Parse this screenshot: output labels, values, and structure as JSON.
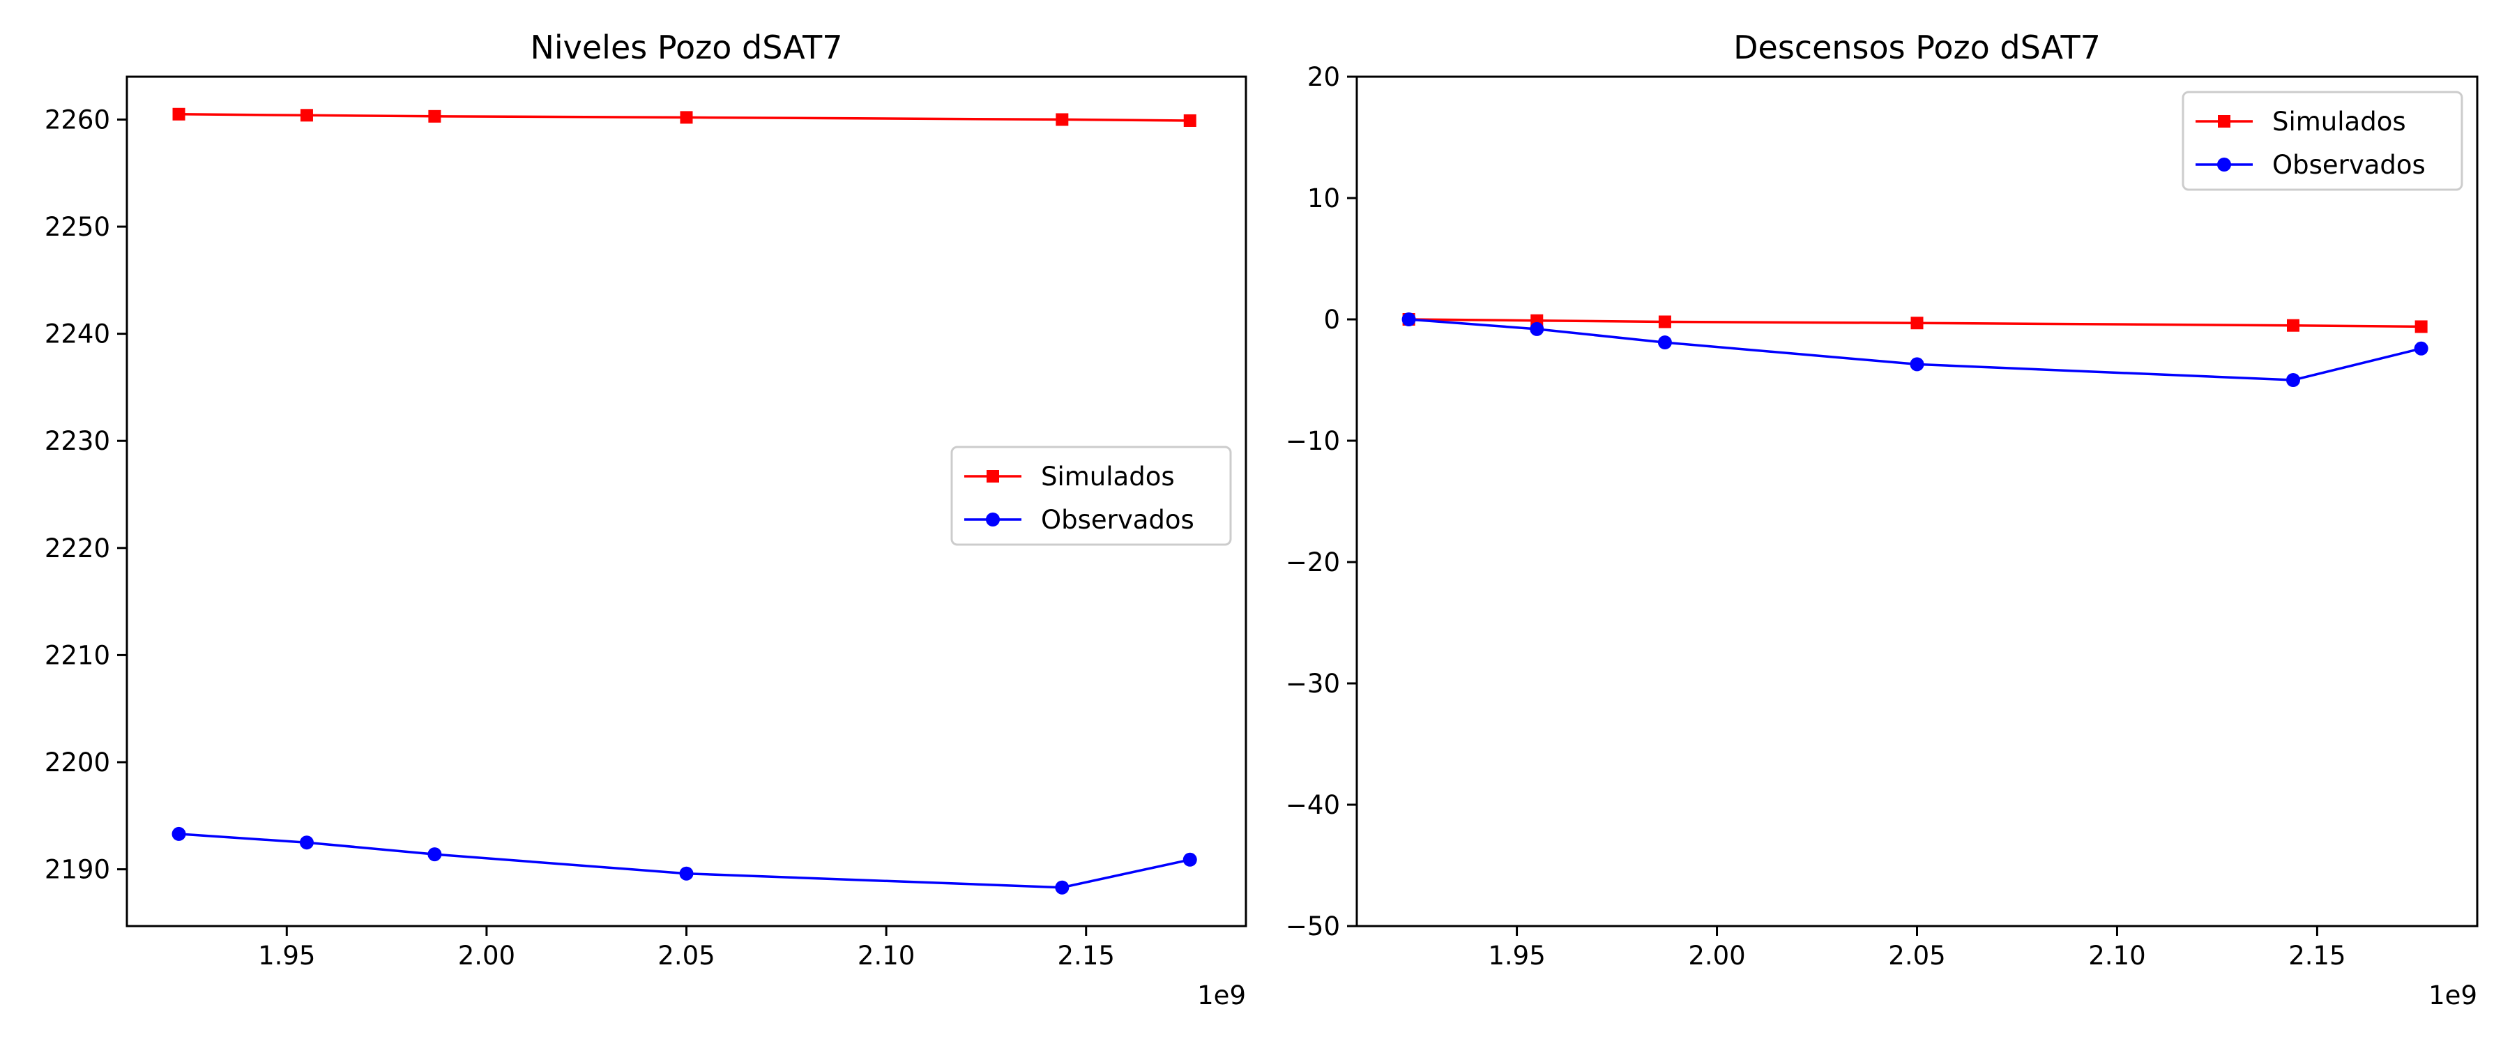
{
  "chart_data": [
    {
      "type": "line",
      "title": "Niveles Pozo dSAT7",
      "xlabel": "",
      "ylabel": "",
      "x_offset_label": "1e9",
      "xlim": [
        1.91,
        2.19
      ],
      "ylim": [
        2184.7,
        2264.0
      ],
      "xticks": [
        1.95,
        2.0,
        2.05,
        2.1,
        2.15
      ],
      "xtick_labels": [
        "1.95",
        "2.00",
        "2.05",
        "2.10",
        "2.15"
      ],
      "yticks": [
        2190,
        2200,
        2210,
        2220,
        2230,
        2240,
        2250,
        2260
      ],
      "ytick_labels": [
        "2190",
        "2200",
        "2210",
        "2220",
        "2230",
        "2240",
        "2250",
        "2260"
      ],
      "grid": false,
      "legend_position": "center-right",
      "x": [
        1.923,
        1.955,
        1.987,
        2.05,
        2.144,
        2.176
      ],
      "series": [
        {
          "name": "Simulados",
          "color": "#ff0000",
          "marker": "square",
          "values": [
            2260.5,
            2260.4,
            2260.3,
            2260.2,
            2260.0,
            2259.9
          ]
        },
        {
          "name": "Observados",
          "color": "#0000ff",
          "marker": "circle",
          "values": [
            2193.3,
            2192.5,
            2191.4,
            2189.6,
            2188.3,
            2190.9
          ]
        }
      ]
    },
    {
      "type": "line",
      "title": "Descensos Pozo dSAT7",
      "xlabel": "",
      "ylabel": "",
      "x_offset_label": "1e9",
      "xlim": [
        1.91,
        2.19
      ],
      "ylim": [
        -50,
        20
      ],
      "xticks": [
        1.95,
        2.0,
        2.05,
        2.1,
        2.15
      ],
      "xtick_labels": [
        "1.95",
        "2.00",
        "2.05",
        "2.10",
        "2.15"
      ],
      "yticks": [
        -50,
        -40,
        -30,
        -20,
        -10,
        0,
        10,
        20
      ],
      "ytick_labels": [
        "−50",
        "−40",
        "−30",
        "−20",
        "−10",
        "0",
        "10",
        "20"
      ],
      "grid": false,
      "legend_position": "top-right",
      "x": [
        1.923,
        1.955,
        1.987,
        2.05,
        2.144,
        2.176
      ],
      "series": [
        {
          "name": "Simulados",
          "color": "#ff0000",
          "marker": "square",
          "values": [
            0.0,
            -0.1,
            -0.2,
            -0.3,
            -0.5,
            -0.6
          ]
        },
        {
          "name": "Observados",
          "color": "#0000ff",
          "marker": "circle",
          "values": [
            0.0,
            -0.8,
            -1.9,
            -3.7,
            -5.0,
            -2.4
          ]
        }
      ]
    }
  ]
}
